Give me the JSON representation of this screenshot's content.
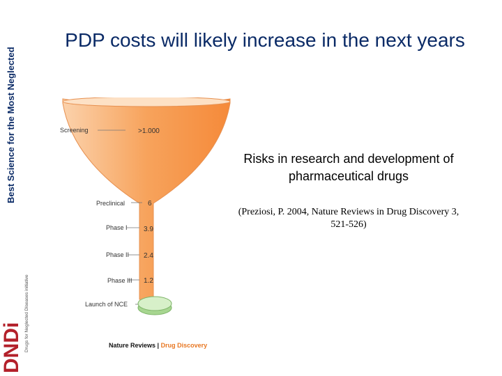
{
  "sidebar": {
    "tagline": "Best Science for the Most Neglected",
    "logo_text": "DNDi",
    "logo_subtext": "Drugs for Neglected Diseases initiative"
  },
  "slide": {
    "title": "PDP costs will likely increase in the next years",
    "caption": "Risks in research and development of pharmaceutical drugs",
    "citation": "(Preziosi, P. 2004, Nature Reviews in Drug Discovery 3, 521-526)"
  },
  "funnel": {
    "stages": [
      {
        "label": "Screening",
        "value": ">1.000"
      },
      {
        "label": "Preclinical",
        "value": "6"
      },
      {
        "label": "Phase I",
        "value": "3.9"
      },
      {
        "label": "Phase II",
        "value": "2.4"
      },
      {
        "label": "Phase III",
        "value": "1.2"
      },
      {
        "label": "Launch of NCE",
        "value": ""
      }
    ],
    "source_brand": "Nature Reviews",
    "source_journal": "Drug Discovery",
    "colors": {
      "funnel": "#f7a35c",
      "pill": "#b9e3a8",
      "journal": "#e87722"
    }
  }
}
